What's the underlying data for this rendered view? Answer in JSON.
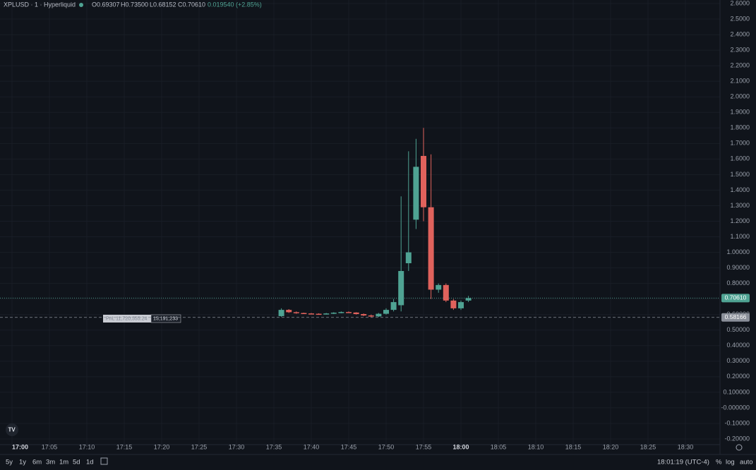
{
  "header": {
    "symbol": "XPLUSD · 1 · Hyperliquid",
    "open": "O0.69307",
    "high": "H0.73500",
    "low": "L0.68152",
    "close": "C0.70610",
    "change": "0.019540 (+2.85%)"
  },
  "chart_data": {
    "type": "candlestick",
    "x": [
      "17:36",
      "17:37",
      "17:38",
      "17:39",
      "17:40",
      "17:41",
      "17:42",
      "17:43",
      "17:44",
      "17:45",
      "17:46",
      "17:47",
      "17:48",
      "17:49",
      "17:50",
      "17:51",
      "17:52",
      "17:53",
      "17:54",
      "17:55",
      "17:56",
      "17:57",
      "17:58",
      "17:59",
      "18:00",
      "18:01"
    ],
    "open": [
      0.59,
      0.63,
      0.615,
      0.61,
      0.607,
      0.605,
      0.604,
      0.607,
      0.612,
      0.616,
      0.613,
      0.603,
      0.594,
      0.588,
      0.605,
      0.63,
      0.66,
      0.93,
      1.21,
      1.62,
      1.29,
      0.76,
      0.79,
      0.69,
      0.64,
      0.69
    ],
    "high": [
      0.64,
      0.635,
      0.62,
      0.612,
      0.61,
      0.608,
      0.61,
      0.615,
      0.62,
      0.62,
      0.615,
      0.607,
      0.6,
      0.61,
      0.64,
      0.7,
      1.36,
      1.65,
      1.73,
      1.8,
      1.63,
      0.8,
      0.8,
      0.7,
      0.69,
      0.72
    ],
    "low": [
      0.585,
      0.61,
      0.605,
      0.605,
      0.603,
      0.602,
      0.6,
      0.603,
      0.608,
      0.61,
      0.6,
      0.59,
      0.583,
      0.585,
      0.6,
      0.62,
      0.62,
      0.88,
      1.15,
      1.2,
      0.7,
      0.74,
      0.68,
      0.63,
      0.63,
      0.68
    ],
    "close": [
      0.63,
      0.615,
      0.61,
      0.607,
      0.605,
      0.604,
      0.607,
      0.612,
      0.616,
      0.613,
      0.603,
      0.594,
      0.588,
      0.605,
      0.63,
      0.68,
      0.88,
      1.0,
      1.55,
      1.29,
      0.76,
      0.79,
      0.69,
      0.64,
      0.68,
      0.7061
    ],
    "up_color": "#4fa393",
    "down_color": "#e0625c",
    "ylim": [
      -0.2,
      2.6
    ],
    "yticks": [
      {
        "value": 2.6,
        "label": "2.6000"
      },
      {
        "value": 2.5,
        "label": "2.5000"
      },
      {
        "value": 2.4,
        "label": "2.4000"
      },
      {
        "value": 2.3,
        "label": "2.3000"
      },
      {
        "value": 2.2,
        "label": "2.2000"
      },
      {
        "value": 2.1,
        "label": "2.1000"
      },
      {
        "value": 2.0,
        "label": "2.0000"
      },
      {
        "value": 1.9,
        "label": "1.9000"
      },
      {
        "value": 1.8,
        "label": "1.8000"
      },
      {
        "value": 1.7,
        "label": "1.7000"
      },
      {
        "value": 1.6,
        "label": "1.6000"
      },
      {
        "value": 1.5,
        "label": "1.5000"
      },
      {
        "value": 1.4,
        "label": "1.4000"
      },
      {
        "value": 1.3,
        "label": "1.3000"
      },
      {
        "value": 1.2,
        "label": "1.2000"
      },
      {
        "value": 1.1,
        "label": "1.1000"
      },
      {
        "value": 1.0,
        "label": "1.00000"
      },
      {
        "value": 0.9,
        "label": "0.90000"
      },
      {
        "value": 0.8,
        "label": "0.80000"
      },
      {
        "value": 0.7,
        "label": "0.70000"
      },
      {
        "value": 0.6,
        "label": "0.60000"
      },
      {
        "value": 0.5,
        "label": "0.50000"
      },
      {
        "value": 0.4,
        "label": "0.40000"
      },
      {
        "value": 0.3,
        "label": "0.30000"
      },
      {
        "value": 0.2,
        "label": "0.20000"
      },
      {
        "value": 0.1,
        "label": "0.100000"
      },
      {
        "value": 0,
        "label": "-0.000000"
      },
      {
        "value": -0.1,
        "label": "-0.10000"
      },
      {
        "value": -0.2,
        "label": "-0.20000"
      }
    ],
    "xticks": [
      "17:00",
      "17:05",
      "17:10",
      "17:15",
      "17:20",
      "17:25",
      "17:30",
      "17:35",
      "17:40",
      "17:45",
      "17:50",
      "17:55",
      "18:00",
      "18:05",
      "18:10",
      "18:15",
      "18:20",
      "18:25",
      "18:30"
    ],
    "last_price": {
      "value": 0.7061,
      "label": "0.70610"
    },
    "ref_price": {
      "value": 0.58166,
      "label": "0.58166"
    },
    "pnl_label": "PnL 11,720,555.24",
    "pnl_value": "15,191,233"
  },
  "toolbar": {
    "ranges": [
      "5y",
      "1y",
      "6m",
      "3m",
      "1m",
      "5d",
      "1d"
    ],
    "clock": "18:01:19 (UTC-4)",
    "percent": "%",
    "log": "log",
    "auto": "auto"
  }
}
